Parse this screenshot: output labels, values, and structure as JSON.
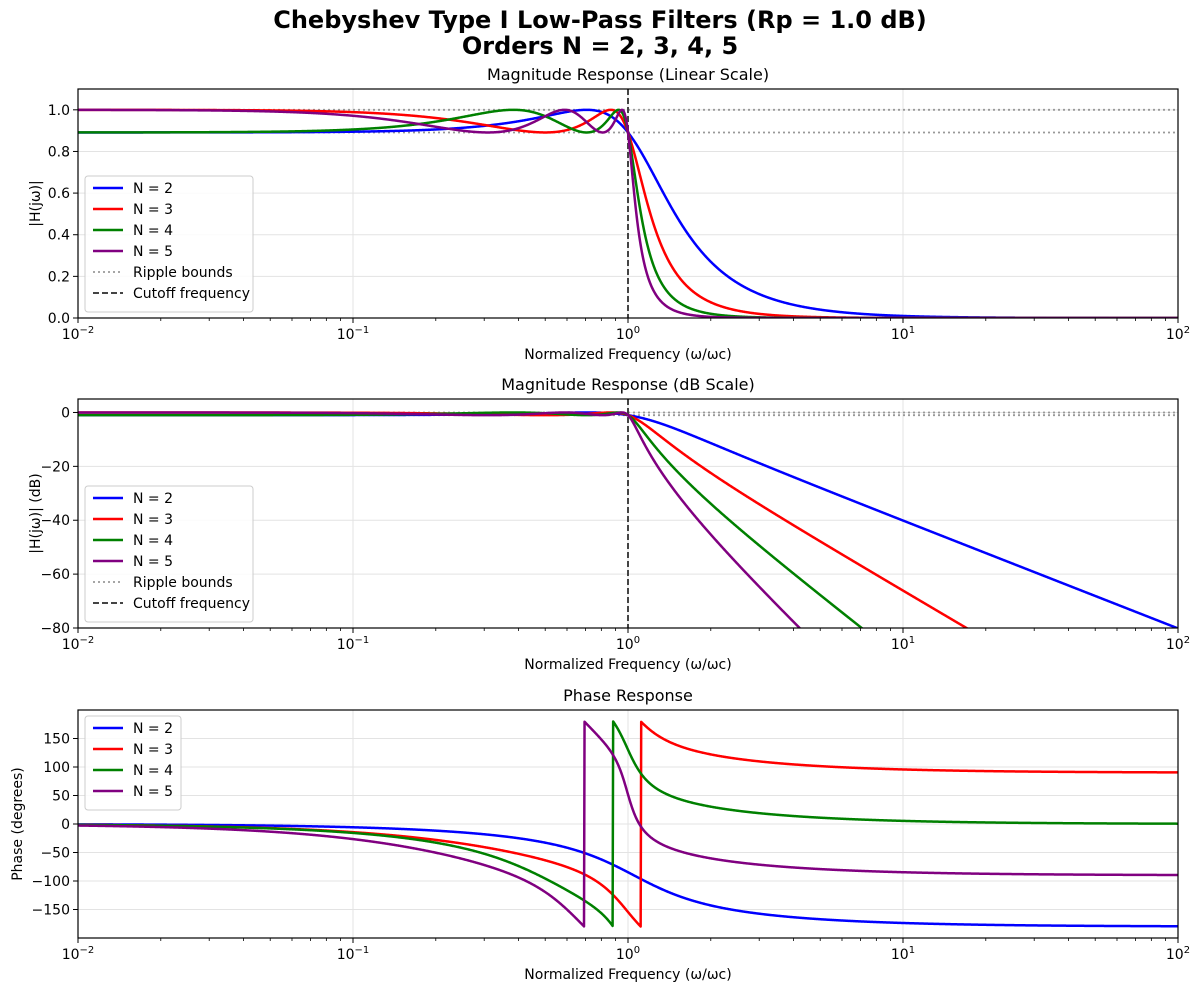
{
  "figure": {
    "title_line1": "Chebyshev Type I Low-Pass Filters (Rp = 1.0 dB)",
    "title_line2": "Orders N = 2, 3, 4, 5"
  },
  "colors": {
    "N2": "#0000ff",
    "N3": "#ff0000",
    "N4": "#008000",
    "N5": "#800080",
    "ripple": "#999999",
    "cutoff": "#444444",
    "grid": "#e3e3e3"
  },
  "chart_data": [
    {
      "id": "linear",
      "type": "line",
      "title": "Magnitude Response (Linear Scale)",
      "xlabel": "Normalized Frequency (ω/ωc)",
      "ylabel": "|H(jω)|",
      "xscale": "log",
      "xlim": [
        0.01,
        100
      ],
      "ylim": [
        0,
        1.1
      ],
      "xticks": [
        0.01,
        0.1,
        1,
        10,
        100
      ],
      "xtick_labels": [
        [
          "10",
          "−2"
        ],
        [
          "10",
          "−1"
        ],
        [
          "10",
          "0"
        ],
        [
          "10",
          "1"
        ],
        [
          "10",
          "2"
        ]
      ],
      "yticks": [
        0,
        0.2,
        0.4,
        0.6,
        0.8,
        1.0
      ],
      "ytick_labels": [
        "0.0",
        "0.2",
        "0.4",
        "0.6",
        "0.8",
        "1.0"
      ],
      "grid": true,
      "legend": "lower-left",
      "filter": {
        "ripple_db": 1.0,
        "orders": [
          2,
          3,
          4,
          5
        ],
        "quantity": "magnitude"
      },
      "series": [
        {
          "name": "N = 2",
          "order": 2,
          "color_key": "N2"
        },
        {
          "name": "N = 3",
          "order": 3,
          "color_key": "N3"
        },
        {
          "name": "N = 4",
          "order": 4,
          "color_key": "N4"
        },
        {
          "name": "N = 5",
          "order": 5,
          "color_key": "N5"
        }
      ],
      "ripple_bounds": {
        "name": "Ripple bounds",
        "values": [
          1.0,
          0.891
        ]
      },
      "cutoff_line": {
        "name": "Cutoff frequency",
        "x": 1.0
      }
    },
    {
      "id": "db",
      "type": "line",
      "title": "Magnitude Response (dB Scale)",
      "xlabel": "Normalized Frequency (ω/ωc)",
      "ylabel": "|H(jω)| (dB)",
      "xscale": "log",
      "xlim": [
        0.01,
        100
      ],
      "ylim": [
        -80,
        5
      ],
      "xticks": [
        0.01,
        0.1,
        1,
        10,
        100
      ],
      "xtick_labels": [
        [
          "10",
          "−2"
        ],
        [
          "10",
          "−1"
        ],
        [
          "10",
          "0"
        ],
        [
          "10",
          "1"
        ],
        [
          "10",
          "2"
        ]
      ],
      "yticks": [
        0,
        -20,
        -40,
        -60,
        -80
      ],
      "ytick_labels": [
        "0",
        "−20",
        "−40",
        "−60",
        "−80"
      ],
      "grid": true,
      "legend": "lower-left",
      "filter": {
        "ripple_db": 1.0,
        "orders": [
          2,
          3,
          4,
          5
        ],
        "quantity": "magnitude_db"
      },
      "series": [
        {
          "name": "N = 2",
          "order": 2,
          "color_key": "N2"
        },
        {
          "name": "N = 3",
          "order": 3,
          "color_key": "N3"
        },
        {
          "name": "N = 4",
          "order": 4,
          "color_key": "N4"
        },
        {
          "name": "N = 5",
          "order": 5,
          "color_key": "N5"
        }
      ],
      "ripple_bounds": {
        "name": "Ripple bounds",
        "values": [
          0,
          -1.0
        ]
      },
      "cutoff_line": {
        "name": "Cutoff frequency",
        "x": 1.0
      }
    },
    {
      "id": "phase",
      "type": "line",
      "title": "Phase Response",
      "xlabel": "Normalized Frequency (ω/ωc)",
      "ylabel": "Phase (degrees)",
      "xscale": "log",
      "xlim": [
        0.01,
        100
      ],
      "ylim": [
        -200,
        200
      ],
      "xticks": [
        0.01,
        0.1,
        1,
        10,
        100
      ],
      "xtick_labels": [
        [
          "10",
          "−2"
        ],
        [
          "10",
          "−1"
        ],
        [
          "10",
          "0"
        ],
        [
          "10",
          "1"
        ],
        [
          "10",
          "2"
        ]
      ],
      "yticks": [
        150,
        100,
        50,
        0,
        -50,
        -100,
        -150
      ],
      "ytick_labels": [
        "150",
        "100",
        "50",
        "0",
        "−50",
        "−100",
        "−150"
      ],
      "grid": true,
      "legend": "upper-left",
      "filter": {
        "ripple_db": 1.0,
        "orders": [
          2,
          3,
          4,
          5
        ],
        "quantity": "phase_wrapped_deg"
      },
      "series": [
        {
          "name": "N = 2",
          "order": 2,
          "color_key": "N2"
        },
        {
          "name": "N = 3",
          "order": 3,
          "color_key": "N3"
        },
        {
          "name": "N = 4",
          "order": 4,
          "color_key": "N4"
        },
        {
          "name": "N = 5",
          "order": 5,
          "color_key": "N5"
        }
      ]
    }
  ]
}
